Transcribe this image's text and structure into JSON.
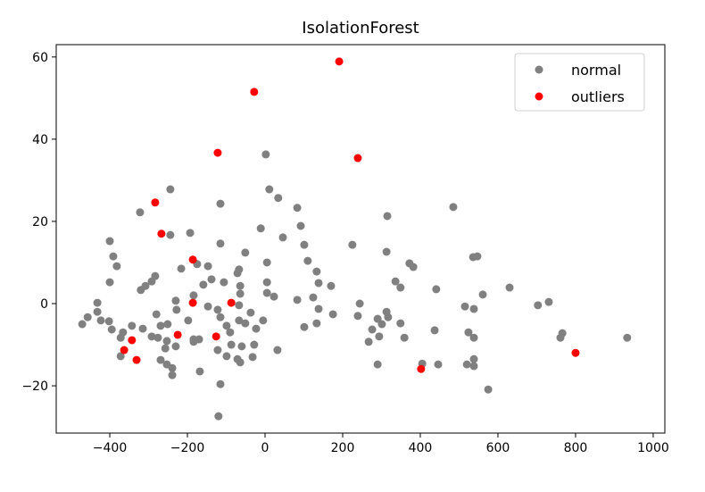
{
  "chart_data": {
    "type": "scatter",
    "title": "IsolationForest",
    "xlabel": "",
    "ylabel": "",
    "xlim": [
      -538,
      1030
    ],
    "ylim": [
      -31.5,
      63
    ],
    "xticks": [
      -400,
      -200,
      0,
      200,
      400,
      600,
      800,
      1000
    ],
    "yticks": [
      -20,
      0,
      20,
      40,
      60
    ],
    "grid": false,
    "legend_position": "top-right",
    "series": [
      {
        "name": "normal",
        "color": "#808080",
        "points": [
          [
            -244,
            27.8
          ],
          [
            11,
            27.8
          ],
          [
            34,
            25.7
          ],
          [
            -322,
            22.2
          ],
          [
            -115,
            24.3
          ],
          [
            -400,
            15.2
          ],
          [
            -244,
            16.7
          ],
          [
            -193,
            17.2
          ],
          [
            -115,
            14.6
          ],
          [
            -11,
            18.3
          ],
          [
            46,
            16.1
          ],
          [
            -391,
            11.5
          ],
          [
            -382,
            9.1
          ],
          [
            -216,
            8.5
          ],
          [
            -175,
            9.6
          ],
          [
            -147,
            9.1
          ],
          [
            -51,
            12.4
          ],
          [
            5,
            10.0
          ],
          [
            -67,
            8.3
          ],
          [
            -71,
            7.4
          ],
          [
            -283,
            6.7
          ],
          [
            -292,
            5.4
          ],
          [
            -308,
            4.3
          ],
          [
            -320,
            3.3
          ],
          [
            -400,
            5.2
          ],
          [
            -159,
            4.6
          ],
          [
            -138,
            5.9
          ],
          [
            -106,
            5.2
          ],
          [
            5,
            5.2
          ],
          [
            -64,
            4.3
          ],
          [
            -64,
            2.4
          ],
          [
            5,
            2.6
          ],
          [
            23,
            1.7
          ],
          [
            -184,
            2.0
          ],
          [
            -230,
            0.7
          ],
          [
            -228,
            -1.5
          ],
          [
            -432,
            0.2
          ],
          [
            -432,
            -2.0
          ],
          [
            -457,
            -3.3
          ],
          [
            -471,
            -5.0
          ],
          [
            -423,
            -4.1
          ],
          [
            -402,
            -4.3
          ],
          [
            -395,
            -6.3
          ],
          [
            -280,
            -2.6
          ],
          [
            -147,
            -0.7
          ],
          [
            -122,
            -1.5
          ],
          [
            -115,
            -3.3
          ],
          [
            -67,
            -0.4
          ],
          [
            -37,
            -2.2
          ],
          [
            -67,
            -4.1
          ],
          [
            -51,
            -4.8
          ],
          [
            -5,
            -4.1
          ],
          [
            -23,
            -6.1
          ],
          [
            -99,
            -5.4
          ],
          [
            -90,
            -7.0
          ],
          [
            -198,
            -4.1
          ],
          [
            -269,
            -5.4
          ],
          [
            -251,
            -5.0
          ],
          [
            -343,
            -5.4
          ],
          [
            -315,
            -6.1
          ],
          [
            -366,
            -7.0
          ],
          [
            -372,
            -8.3
          ],
          [
            -292,
            -8.0
          ],
          [
            -276,
            -8.3
          ],
          [
            -253,
            -9.1
          ],
          [
            -257,
            -10.9
          ],
          [
            -230,
            -10.4
          ],
          [
            -184,
            -8.7
          ],
          [
            -170,
            -8.7
          ],
          [
            -184,
            -9.3
          ],
          [
            -122,
            -11.3
          ],
          [
            -87,
            -10.0
          ],
          [
            -60,
            -10.4
          ],
          [
            -28,
            -10.0
          ],
          [
            32,
            -11.3
          ],
          [
            -99,
            -12.8
          ],
          [
            -71,
            -13.5
          ],
          [
            -64,
            -14.3
          ],
          [
            -32,
            -13.0
          ],
          [
            -372,
            -12.8
          ],
          [
            -269,
            -13.7
          ],
          [
            -253,
            -14.8
          ],
          [
            -239,
            -15.7
          ],
          [
            -239,
            -17.4
          ],
          [
            -168,
            -16.5
          ],
          [
            -115,
            -19.6
          ],
          [
            -120,
            -27.4
          ],
          [
            2,
            36.3
          ],
          [
            83,
            23.3
          ],
          [
            485,
            23.5
          ],
          [
            315,
            21.3
          ],
          [
            92,
            18.9
          ],
          [
            101,
            14.3
          ],
          [
            225,
            14.3
          ],
          [
            313,
            12.6
          ],
          [
            110,
            10.4
          ],
          [
            133,
            7.8
          ],
          [
            138,
            5.0
          ],
          [
            170,
            4.3
          ],
          [
            372,
            9.8
          ],
          [
            382,
            8.9
          ],
          [
            536,
            11.3
          ],
          [
            547,
            11.5
          ],
          [
            336,
            5.4
          ],
          [
            349,
            3.9
          ],
          [
            441,
            3.5
          ],
          [
            561,
            2.2
          ],
          [
            630,
            3.9
          ],
          [
            703,
            -0.4
          ],
          [
            731,
            0.4
          ],
          [
            83,
            0.9
          ],
          [
            124,
            1.5
          ],
          [
            138,
            -1.3
          ],
          [
            175,
            -2.6
          ],
          [
            244,
            0
          ],
          [
            239,
            -3.0
          ],
          [
            313,
            -2.0
          ],
          [
            317,
            -3.3
          ],
          [
            290,
            -3.7
          ],
          [
            301,
            -5.0
          ],
          [
            276,
            -6.3
          ],
          [
            294,
            -8.0
          ],
          [
            267,
            -9.3
          ],
          [
            349,
            -4.8
          ],
          [
            359,
            -8.3
          ],
          [
            437,
            -6.5
          ],
          [
            515,
            -0.7
          ],
          [
            538,
            -1.3
          ],
          [
            524,
            -7.0
          ],
          [
            538,
            -8.3
          ],
          [
            101,
            -5.7
          ],
          [
            133,
            -4.8
          ],
          [
            290,
            -14.8
          ],
          [
            405,
            -14.6
          ],
          [
            446,
            -14.8
          ],
          [
            520,
            -14.8
          ],
          [
            538,
            -13.5
          ],
          [
            538,
            -15.2
          ],
          [
            575,
            -20.9
          ],
          [
            766,
            -7.2
          ],
          [
            761,
            -8.3
          ],
          [
            933,
            -8.3
          ]
        ]
      },
      {
        "name": "outliers",
        "color": "#ff0000",
        "points": [
          [
            191,
            58.9
          ],
          [
            -28,
            51.5
          ],
          [
            -122,
            36.7
          ],
          [
            239,
            35.4
          ],
          [
            -283,
            24.6
          ],
          [
            -267,
            17.0
          ],
          [
            -186,
            10.7
          ],
          [
            -186,
            0.2
          ],
          [
            -87,
            0.2
          ],
          [
            -225,
            -7.6
          ],
          [
            -126,
            -8.0
          ],
          [
            -343,
            -8.9
          ],
          [
            -363,
            -11.3
          ],
          [
            -331,
            -13.7
          ],
          [
            402,
            -15.9
          ],
          [
            800,
            -12.0
          ]
        ]
      }
    ]
  }
}
